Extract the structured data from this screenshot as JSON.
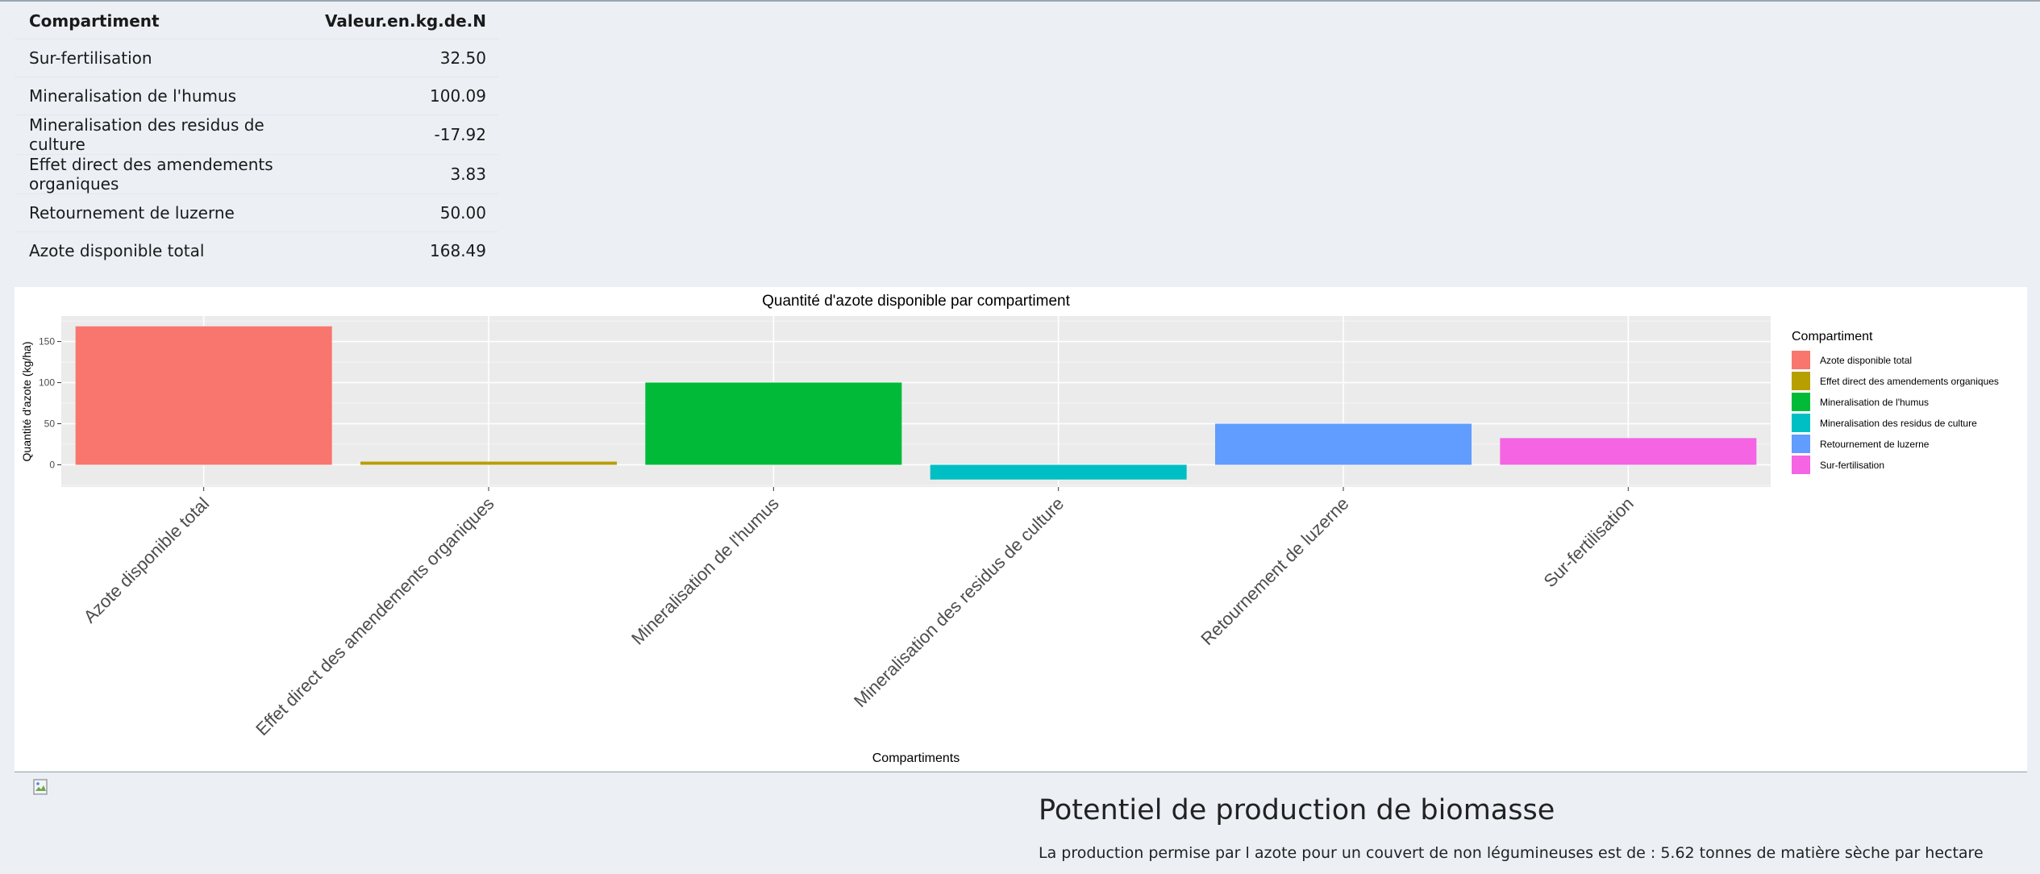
{
  "table": {
    "headers": [
      "Compartiment",
      "Valeur.en.kg.de.N"
    ],
    "rows": [
      {
        "name": "Sur-fertilisation",
        "value": "32.50"
      },
      {
        "name": "Mineralisation de l'humus",
        "value": "100.09"
      },
      {
        "name": "Mineralisation des residus de culture",
        "value": "-17.92"
      },
      {
        "name": "Effet direct des amendements organiques",
        "value": "3.83"
      },
      {
        "name": "Retournement de luzerne",
        "value": "50.00"
      },
      {
        "name": "Azote disponible total",
        "value": "168.49"
      }
    ]
  },
  "chart_data": {
    "type": "bar",
    "title": "Quantité d'azote disponible par compartiment",
    "xlabel": "Compartiments",
    "ylabel": "Quantité d'azote (kg/ha)",
    "categories": [
      "Azote disponible total",
      "Effet direct des amendements organiques",
      "Mineralisation de l'humus",
      "Mineralisation des residus de culture",
      "Retournement de luzerne",
      "Sur-fertilisation"
    ],
    "values": [
      168.49,
      3.83,
      100.09,
      -17.92,
      50.0,
      32.5
    ],
    "colors": [
      "#F8766D",
      "#B79F00",
      "#00BA38",
      "#00BFC4",
      "#619CFF",
      "#F564E3"
    ],
    "yticks": [
      0,
      50,
      100,
      150
    ],
    "ylim": [
      -27,
      181
    ],
    "grid": true,
    "legend": {
      "title": "Compartiment",
      "placement": "right",
      "entries": [
        "Azote disponible total",
        "Effet direct des amendements organiques",
        "Mineralisation de l'humus",
        "Mineralisation des residus de culture",
        "Retournement de luzerne",
        "Sur-fertilisation"
      ]
    }
  },
  "section": {
    "title": "Potentiel de production de biomasse",
    "text": "La production permise par l azote pour un couvert de non légumineuses est de : 5.62 tonnes de matière sèche par hectare"
  }
}
